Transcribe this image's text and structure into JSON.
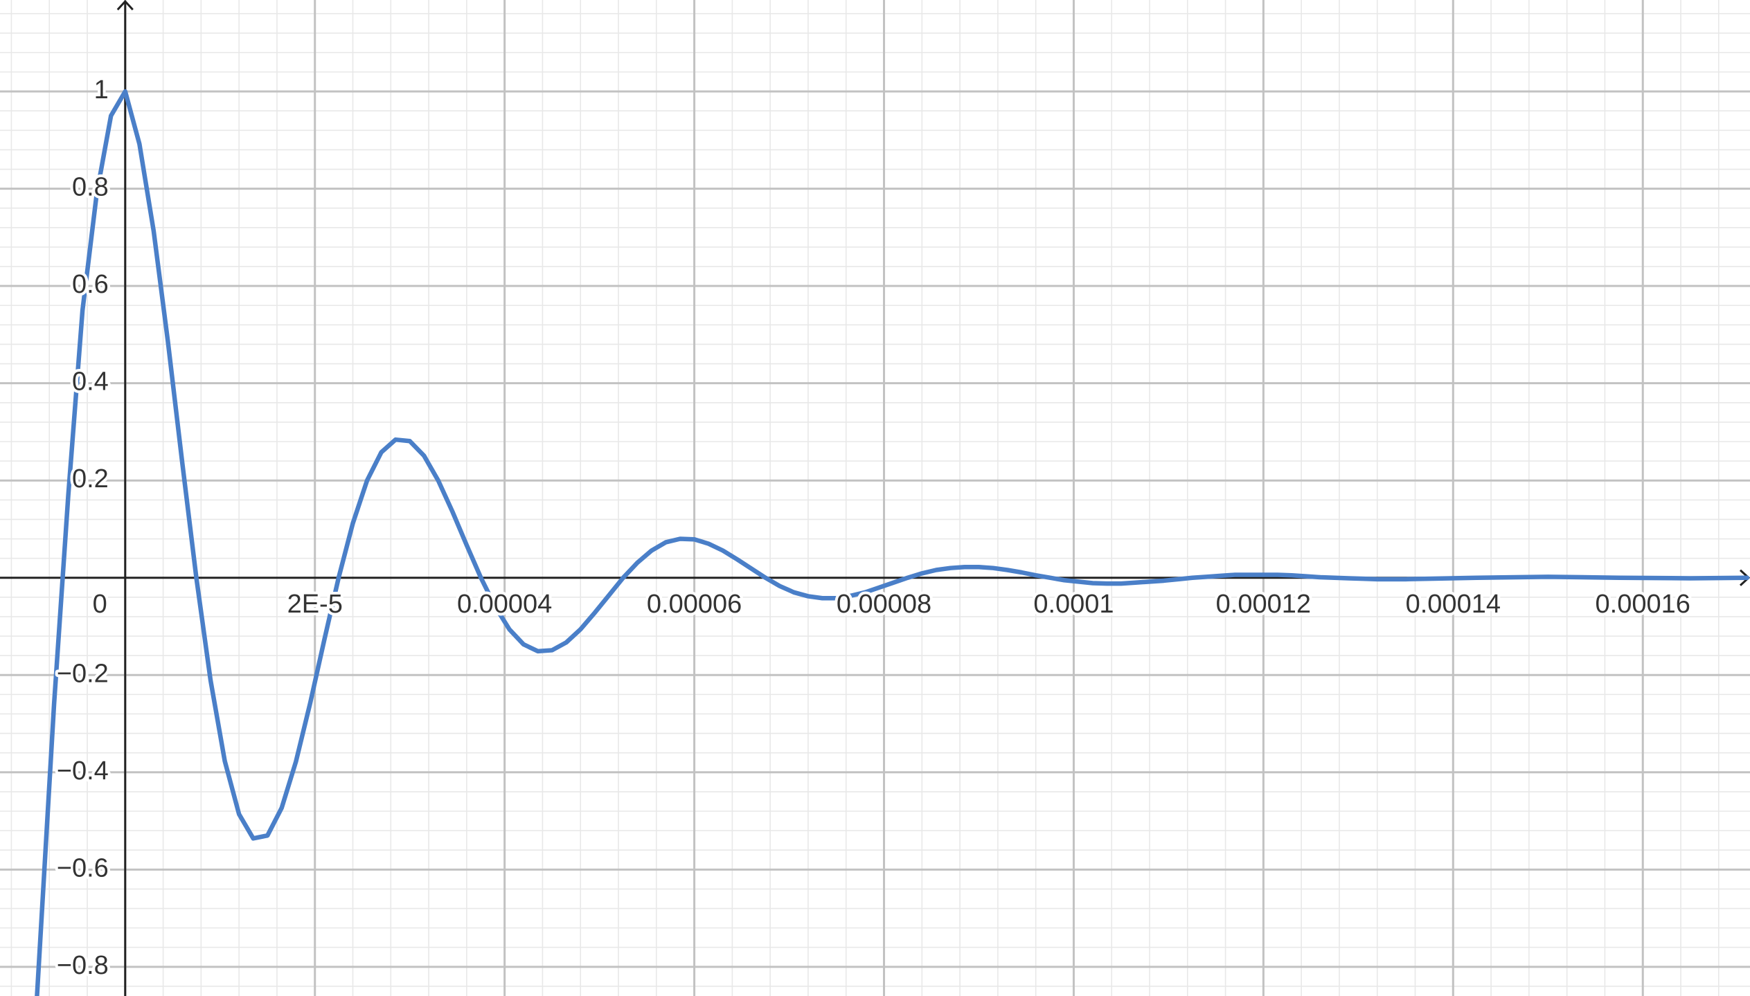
{
  "chart_data": {
    "type": "line",
    "x": [
      -9.3e-06,
      -7.5e-06,
      -6e-06,
      -4.5e-06,
      -3e-06,
      -1.5e-06,
      0,
      1.5e-06,
      3e-06,
      4.5e-06,
      6e-06,
      7.5e-06,
      9e-06,
      1.05e-05,
      1.2e-05,
      1.35e-05,
      1.5e-05,
      1.65e-05,
      1.8e-05,
      1.95e-05,
      2.1e-05,
      2.25e-05,
      2.4e-05,
      2.55e-05,
      2.7e-05,
      2.85e-05,
      3e-05,
      3.15e-05,
      3.3e-05,
      3.45e-05,
      3.6e-05,
      3.75e-05,
      3.9e-05,
      4.05e-05,
      4.2e-05,
      4.35e-05,
      4.5e-05,
      4.65e-05,
      4.8e-05,
      4.95e-05,
      5.1e-05,
      5.25e-05,
      5.4e-05,
      5.55e-05,
      5.7e-05,
      5.85e-05,
      6e-05,
      6.15e-05,
      6.3e-05,
      6.45e-05,
      6.6e-05,
      6.75e-05,
      6.9e-05,
      7.05e-05,
      7.2e-05,
      7.35e-05,
      7.5e-05,
      7.65e-05,
      7.8e-05,
      7.95e-05,
      8.1e-05,
      8.25e-05,
      8.4e-05,
      8.55e-05,
      8.7e-05,
      8.85e-05,
      9e-05,
      9.15e-05,
      9.3e-05,
      9.45e-05,
      9.6e-05,
      9.75e-05,
      9.9e-05,
      0.0001005,
      0.000102,
      0.0001035,
      0.000105,
      0.0001065,
      0.000108,
      0.0001095,
      0.000111,
      0.0001125,
      0.000114,
      0.0001155,
      0.000117,
      0.0001185,
      0.00012,
      0.0001215,
      0.000123,
      0.0001245,
      0.000126,
      0.0001275,
      0.000129,
      0.0001305,
      0.000132,
      0.0001335,
      0.000135,
      0.0001425,
      0.00015,
      0.0001575,
      0.000165,
      0.000171
    ],
    "values": [
      -0.86,
      -0.26,
      0.17,
      0.55,
      0.79,
      0.95,
      1,
      0.892,
      0.713,
      0.486,
      0.239,
      0,
      -0.211,
      -0.377,
      -0.486,
      -0.536,
      -0.53,
      -0.473,
      -0.378,
      -0.258,
      -0.127,
      0,
      0.112,
      0.2,
      0.258,
      0.284,
      0.281,
      0.251,
      0.2,
      0.136,
      0.067,
      0,
      -0.059,
      -0.106,
      -0.137,
      -0.151,
      -0.149,
      -0.133,
      -0.106,
      -0.072,
      -0.036,
      0,
      0.031,
      0.056,
      0.073,
      0.08,
      0.079,
      0.07,
      0.056,
      0.038,
      0.019,
      0,
      -0.017,
      -0.03,
      -0.038,
      -0.042,
      -0.042,
      -0.037,
      -0.03,
      -0.02,
      -0.01,
      0,
      0.009,
      0.016,
      0.02,
      0.022,
      0.022,
      0.02,
      0.016,
      0.011,
      0.005,
      0,
      -0.005,
      -0.008,
      -0.011,
      -0.012,
      -0.012,
      -0.01,
      -0.008,
      -0.006,
      -0.003,
      0,
      0.002,
      0.004,
      0.006,
      0.006,
      0.006,
      0.006,
      0.005,
      0.003,
      0.001,
      0,
      -0.001,
      -0.002,
      -0.003,
      -0.003,
      -0.003,
      0,
      0.002,
      0,
      -0.001,
      0
    ],
    "color": "#4a7fc8",
    "xlim": [
      -1.32e-05,
      0.0001713
    ],
    "ylim": [
      -0.86,
      1.188
    ],
    "xticks": [
      {
        "value": 0,
        "label": "0"
      },
      {
        "value": 2e-05,
        "label": "2E-5"
      },
      4e-05,
      6e-05,
      8e-05,
      0.0001,
      0.00012,
      0.00014,
      0.00016
    ],
    "yticks": [
      {
        "value": -0.8,
        "label": "−0.8"
      },
      {
        "value": -0.6,
        "label": "−0.6"
      },
      {
        "value": -0.4,
        "label": "−0.4"
      },
      {
        "value": -0.2,
        "label": "−0.2"
      },
      0.2,
      0.4,
      0.6,
      0.8,
      1
    ],
    "grid": true
  }
}
